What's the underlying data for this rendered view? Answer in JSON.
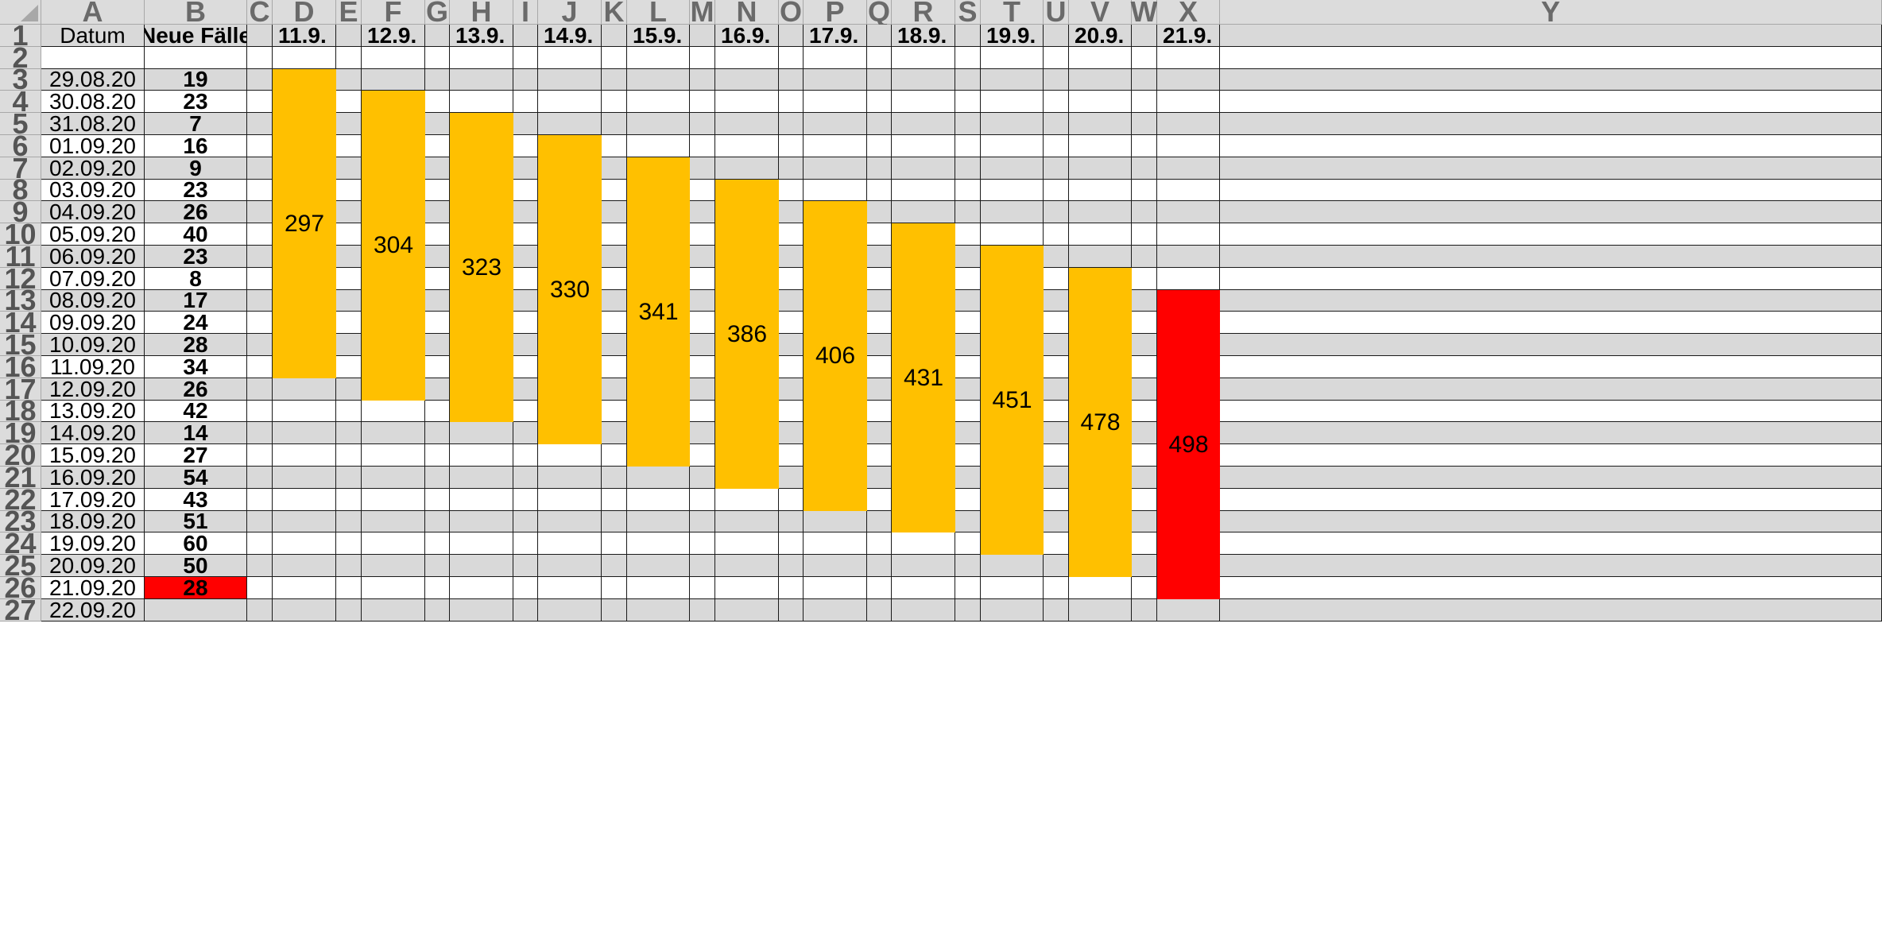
{
  "columns": [
    "A",
    "B",
    "C",
    "D",
    "E",
    "F",
    "G",
    "H",
    "I",
    "J",
    "K",
    "L",
    "M",
    "N",
    "O",
    "P",
    "Q",
    "R",
    "S",
    "T",
    "U",
    "V",
    "W",
    "X",
    "Y"
  ],
  "header_row": {
    "A": "Datum",
    "B": "Neue Fälle",
    "D": "11.9.",
    "F": "12.9.",
    "H": "13.9.",
    "J": "14.9.",
    "L": "15.9.",
    "N": "16.9.",
    "P": "17.9.",
    "R": "18.9.",
    "T": "19.9.",
    "V": "20.9.",
    "X": "21.9."
  },
  "rows": [
    {
      "row": 3,
      "date": "29.08.20",
      "cases": "19"
    },
    {
      "row": 4,
      "date": "30.08.20",
      "cases": "23"
    },
    {
      "row": 5,
      "date": "31.08.20",
      "cases": "7"
    },
    {
      "row": 6,
      "date": "01.09.20",
      "cases": "16"
    },
    {
      "row": 7,
      "date": "02.09.20",
      "cases": "9"
    },
    {
      "row": 8,
      "date": "03.09.20",
      "cases": "23"
    },
    {
      "row": 9,
      "date": "04.09.20",
      "cases": "26"
    },
    {
      "row": 10,
      "date": "05.09.20",
      "cases": "40"
    },
    {
      "row": 11,
      "date": "06.09.20",
      "cases": "23"
    },
    {
      "row": 12,
      "date": "07.09.20",
      "cases": "8"
    },
    {
      "row": 13,
      "date": "08.09.20",
      "cases": "17"
    },
    {
      "row": 14,
      "date": "09.09.20",
      "cases": "24"
    },
    {
      "row": 15,
      "date": "10.09.20",
      "cases": "28"
    },
    {
      "row": 16,
      "date": "11.09.20",
      "cases": "34"
    },
    {
      "row": 17,
      "date": "12.09.20",
      "cases": "26"
    },
    {
      "row": 18,
      "date": "13.09.20",
      "cases": "42"
    },
    {
      "row": 19,
      "date": "14.09.20",
      "cases": "14"
    },
    {
      "row": 20,
      "date": "15.09.20",
      "cases": "27"
    },
    {
      "row": 21,
      "date": "16.09.20",
      "cases": "54"
    },
    {
      "row": 22,
      "date": "17.09.20",
      "cases": "43"
    },
    {
      "row": 23,
      "date": "18.09.20",
      "cases": "51"
    },
    {
      "row": 24,
      "date": "19.09.20",
      "cases": "60"
    },
    {
      "row": 25,
      "date": "20.09.20",
      "cases": "50"
    },
    {
      "row": 26,
      "date": "21.09.20",
      "cases": "28",
      "highlight": true
    },
    {
      "row": 27,
      "date": "22.09.20",
      "cases": ""
    }
  ],
  "sums": [
    {
      "col": "D",
      "label": "11.9.",
      "first_row": 3,
      "last_row": 16,
      "value": "297",
      "color": "#ffc000"
    },
    {
      "col": "F",
      "label": "12.9.",
      "first_row": 4,
      "last_row": 17,
      "value": "304",
      "color": "#ffc000"
    },
    {
      "col": "H",
      "label": "13.9.",
      "first_row": 5,
      "last_row": 18,
      "value": "323",
      "color": "#ffc000"
    },
    {
      "col": "J",
      "label": "14.9.",
      "first_row": 6,
      "last_row": 19,
      "value": "330",
      "color": "#ffc000"
    },
    {
      "col": "L",
      "label": "15.9.",
      "first_row": 7,
      "last_row": 20,
      "value": "341",
      "color": "#ffc000"
    },
    {
      "col": "N",
      "label": "16.9.",
      "first_row": 8,
      "last_row": 21,
      "value": "386",
      "color": "#ffc000"
    },
    {
      "col": "P",
      "label": "17.9.",
      "first_row": 9,
      "last_row": 22,
      "value": "406",
      "color": "#ffc000"
    },
    {
      "col": "R",
      "label": "18.9.",
      "first_row": 10,
      "last_row": 23,
      "value": "431",
      "color": "#ffc000"
    },
    {
      "col": "T",
      "label": "19.9.",
      "first_row": 11,
      "last_row": 24,
      "value": "451",
      "color": "#ffc000"
    },
    {
      "col": "V",
      "label": "20.9.",
      "first_row": 12,
      "last_row": 25,
      "value": "478",
      "color": "#ffc000"
    },
    {
      "col": "X",
      "label": "21.9.",
      "first_row": 13,
      "last_row": 26,
      "value": "498",
      "color": "#ff0000"
    }
  ],
  "colors": {
    "band_gray": "#d9d9d9",
    "white": "#ffffff",
    "orange": "#ffc000",
    "red": "#ff0000",
    "header_bg": "#dcdcdc"
  }
}
